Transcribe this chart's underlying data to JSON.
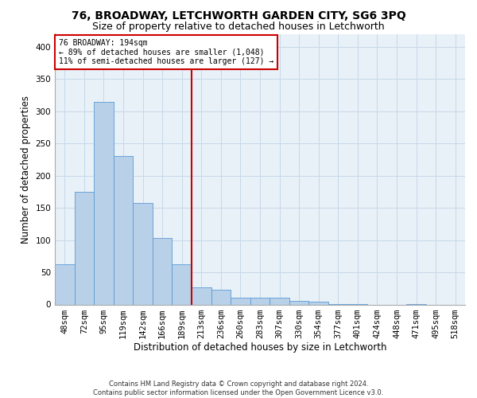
{
  "title": "76, BROADWAY, LETCHWORTH GARDEN CITY, SG6 3PQ",
  "subtitle": "Size of property relative to detached houses in Letchworth",
  "xlabel": "Distribution of detached houses by size in Letchworth",
  "ylabel": "Number of detached properties",
  "bar_labels": [
    "48sqm",
    "72sqm",
    "95sqm",
    "119sqm",
    "142sqm",
    "166sqm",
    "189sqm",
    "213sqm",
    "236sqm",
    "260sqm",
    "283sqm",
    "307sqm",
    "330sqm",
    "354sqm",
    "377sqm",
    "401sqm",
    "424sqm",
    "448sqm",
    "471sqm",
    "495sqm",
    "518sqm"
  ],
  "bar_values": [
    62,
    175,
    314,
    230,
    158,
    103,
    62,
    27,
    23,
    10,
    11,
    11,
    5,
    4,
    1,
    1,
    0,
    0,
    1,
    0,
    0
  ],
  "bar_color": "#b8d0e8",
  "bar_edge_color": "#5b9bd5",
  "vline_x": 6.5,
  "vline_color": "#cc0000",
  "annotation_text": "76 BROADWAY: 194sqm\n← 89% of detached houses are smaller (1,048)\n11% of semi-detached houses are larger (127) →",
  "annotation_box_color": "#cc0000",
  "annotation_bg": "white",
  "ylim": [
    0,
    420
  ],
  "yticks": [
    0,
    50,
    100,
    150,
    200,
    250,
    300,
    350,
    400
  ],
  "grid_color": "#c8d8e8",
  "footer_line1": "Contains HM Land Registry data © Crown copyright and database right 2024.",
  "footer_line2": "Contains public sector information licensed under the Open Government Licence v3.0.",
  "plot_bg_color": "#e8f0f8",
  "title_fontsize": 10,
  "subtitle_fontsize": 9,
  "axis_label_fontsize": 8.5,
  "tick_fontsize": 7.5,
  "footer_fontsize": 6
}
